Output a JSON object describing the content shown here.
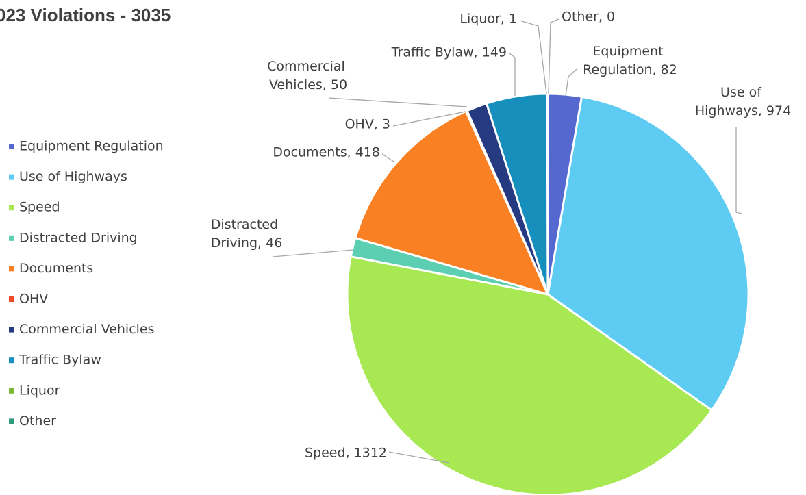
{
  "chart_data": {
    "type": "pie",
    "title": "023 Violations - 3035",
    "categories": [
      "Equipment Regulation",
      "Use of Highways",
      "Speed",
      "Distracted Driving",
      "Documents",
      "OHV",
      "Commercial Vehicles",
      "Traffic Bylaw",
      "Liquor",
      "Other"
    ],
    "values": [
      82,
      974,
      1312,
      46,
      418,
      3,
      50,
      149,
      1,
      0
    ],
    "value_labels": [
      "Equipment Regulation, 82",
      "Use of Highways, 974",
      "Speed, 1312",
      "Distracted Driving, 46",
      "Documents, 418",
      "OHV, 3",
      "Commercial Vehicles, 50",
      "Traffic Bylaw, 149",
      "Liquor, 1",
      "Other, 0"
    ],
    "colors": [
      "#5468cf",
      "#5ecbf3",
      "#a7e853",
      "#5ccfb2",
      "#f98124",
      "#f04a2a",
      "#253a80",
      "#168fbd",
      "#7cb836",
      "#2e9a7a"
    ],
    "legend": "left"
  }
}
